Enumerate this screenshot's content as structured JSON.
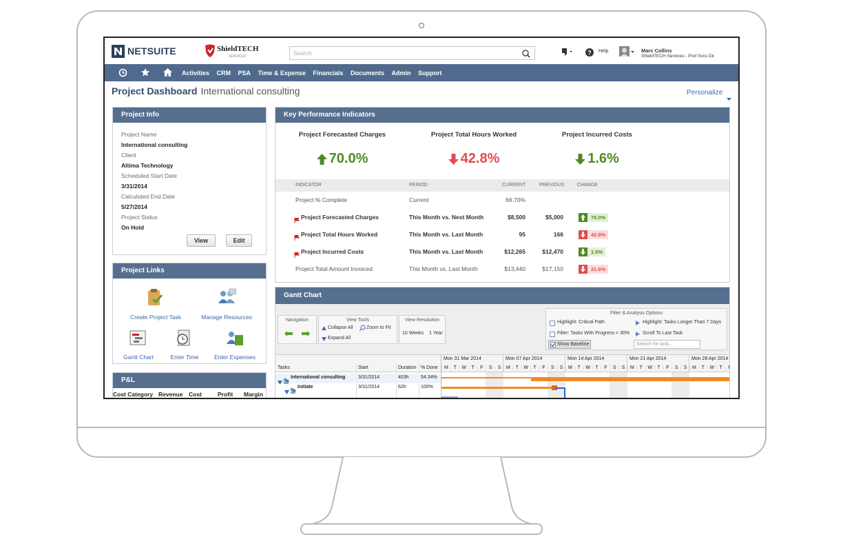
{
  "header": {
    "brand": "NETSUITE",
    "company": "ShieldTECH",
    "company_sub": "SERVICES",
    "search_placeholder": "Search",
    "help": "Help",
    "user_name": "Marc Collins",
    "user_role": "ShieldTECH Services - Prof Svcs Dir"
  },
  "nav": [
    "Activities",
    "CRM",
    "PSA",
    "Time & Expense",
    "Financials",
    "Documents",
    "Admin",
    "Support"
  ],
  "page": {
    "title": "Project Dashboard",
    "subtitle": "International consulting",
    "personalize": "Personalize"
  },
  "project_info": {
    "title": "Project Info",
    "fields": [
      {
        "label": "Project Name",
        "value": "International consulting"
      },
      {
        "label": "Client",
        "value": "Altima Technology"
      },
      {
        "label": "Scheduled Start Date",
        "value": "3/31/2014"
      },
      {
        "label": "Calculated End Date",
        "value": "5/27/2014"
      },
      {
        "label": "Project Status",
        "value": "On Hold"
      }
    ],
    "buttons": [
      "View",
      "Edit"
    ]
  },
  "project_links": {
    "title": "Project Links",
    "links": [
      "Create Project Task",
      "Manage Resources",
      "Gantt Chart",
      "Enter Time",
      "Enter Expenses"
    ]
  },
  "pl": {
    "title": "P&L",
    "columns": [
      "Cost Category",
      "Revenue",
      "Cost",
      "Profit",
      "Margin"
    ]
  },
  "kpi": {
    "title": "Key Performance Indicators",
    "highlights": [
      {
        "name": "Project Forecasted Charges",
        "value": "70.0%",
        "direction": "up",
        "tone": "good"
      },
      {
        "name": "Project Total Hours Worked",
        "value": "42.8%",
        "direction": "down",
        "tone": "bad"
      },
      {
        "name": "Project Incurred Costs",
        "value": "1.6%",
        "direction": "down",
        "tone": "good"
      }
    ],
    "columns": [
      "INDICATOR",
      "PERIOD",
      "CURRENT",
      "PREVIOUS",
      "CHANGE"
    ],
    "rows": [
      {
        "indicator": "Project % Complete",
        "period": "Current",
        "current": "66.70%",
        "flagged": false
      },
      {
        "indicator": "Project Forecasted Charges",
        "period": "This Month vs. Next Month",
        "current": "$8,500",
        "previous": "$5,000",
        "change": {
          "text": "70.0%",
          "direction": "up",
          "tone": "good"
        },
        "flagged": true
      },
      {
        "indicator": "Project Total Hours Worked",
        "period": "This Month vs. Last Month",
        "current": "95",
        "previous": "166",
        "change": {
          "text": "42.8%",
          "direction": "down",
          "tone": "bad"
        },
        "flagged": true
      },
      {
        "indicator": "Project Incurred Costs",
        "period": "This Month vs. Last Month",
        "current": "$12,265",
        "previous": "$12,470",
        "change": {
          "text": "1.6%",
          "direction": "down",
          "tone": "good"
        },
        "flagged": true
      },
      {
        "indicator": "Project Total Amount Invoiced",
        "period": "This Month vs. Last Month",
        "current": "$13,440",
        "previous": "$17,150",
        "change": {
          "text": "21.6%",
          "direction": "down",
          "tone": "bad"
        },
        "flagged": false
      }
    ]
  },
  "gantt": {
    "title": "Gantt Chart",
    "toolbar": {
      "navigation": "Navigation",
      "view_tools": {
        "title": "View Tools",
        "collapse": "Collapse All",
        "zoom": "Zoom to Fit",
        "expand": "Expand All"
      },
      "view_resolution": {
        "title": "View Resolution",
        "options": [
          "10 Weeks",
          "1 Year"
        ]
      },
      "filter": {
        "title": "Filter & Analysis Options",
        "critical_path": "Highlight: Critical Path",
        "longer_than": "Highlight: Tasks Longer Than 7 Days",
        "progress": "Filter: Tasks With Progress < 30%",
        "scroll_last": "Scroll To Last Task",
        "baseline": "Show Baseline",
        "search_placeholder": "Search for task..."
      }
    },
    "columns": [
      "Tasks",
      "Start",
      "Duration",
      "% Done"
    ],
    "weeks": [
      "Mon 31 Mar 2014",
      "Mon 07 Apr 2014",
      "Mon 14 Apr 2014",
      "Mon 21 Apr 2014",
      "Mon 28 Apr 2014"
    ],
    "days": [
      "M",
      "T",
      "W",
      "T",
      "F",
      "S",
      "S"
    ],
    "rows": [
      {
        "task": "International consulting",
        "start": "3/31/2014",
        "duration": "403h",
        "done": "54.34%",
        "level": 0
      },
      {
        "task": "Initiate",
        "start": "3/31/2014",
        "duration": "62h",
        "done": "100%",
        "level": 1
      }
    ]
  }
}
